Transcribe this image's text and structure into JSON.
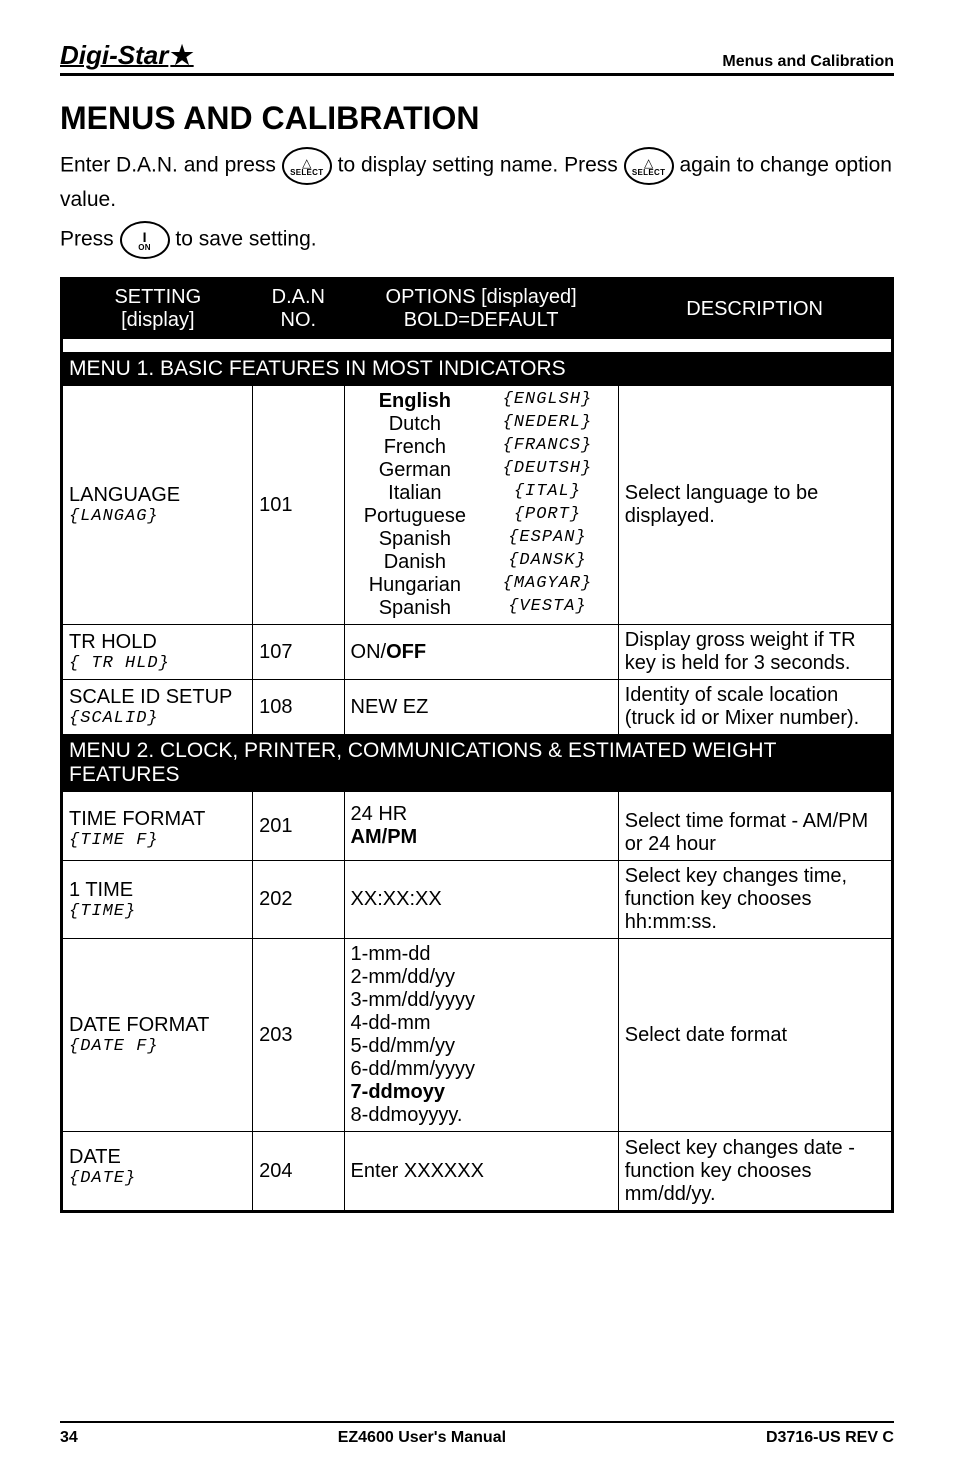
{
  "header": {
    "logo_text": "Digi-Star",
    "logo_star": "★",
    "right": "Menus and Calibration"
  },
  "title": "MENUS AND CALIBRATION",
  "intro": {
    "line1_a": "Enter D.A.N. and press ",
    "line1_b": " to display setting name. Press ",
    "line1_c": " again to change option value.",
    "line2_a": "Press ",
    "line2_b": " to save setting."
  },
  "icons": {
    "select_tri": "△",
    "select_label": "SELECT",
    "on_bar": "I",
    "on_label": "ON"
  },
  "table": {
    "headers": {
      "setting_l1": "SETTING",
      "setting_l2": "[display]",
      "dan_l1": "D.A.N",
      "dan_l2": "NO.",
      "options_l1": "OPTIONS [displayed]",
      "options_l2": "BOLD=DEFAULT",
      "desc": "DESCRIPTION"
    },
    "section1": "MENU 1. BASIC FEATURES IN MOST INDICATORS",
    "row_lang": {
      "setting": "LANGUAGE",
      "setting_disp": "{LANGAG}",
      "dan": "101",
      "langs": [
        {
          "name": "English",
          "code": "{ENGLSH}",
          "bold": true
        },
        {
          "name": "Dutch",
          "code": "{NEDERL}"
        },
        {
          "name": "French",
          "code": "{FRANCS}"
        },
        {
          "name": "German",
          "code": "{DEUTSH}"
        },
        {
          "name": "Italian",
          "code": "{ITAL}"
        },
        {
          "name": "Portuguese",
          "code": "{PORT}"
        },
        {
          "name": "Spanish",
          "code": "{ESPAN}"
        },
        {
          "name": "Danish",
          "code": "{DANSK}"
        },
        {
          "name": "Hungarian",
          "code": "{MAGYAR}"
        },
        {
          "name": "Spanish",
          "code": "{VESTA}"
        }
      ],
      "desc": "Select language to be displayed."
    },
    "row_trhold": {
      "setting": "TR HOLD",
      "setting_disp": "{ TR HLD}",
      "dan": "107",
      "options_pre": "ON/",
      "options_bold": "OFF",
      "desc": "Display gross weight if TR key is held for 3 seconds."
    },
    "row_scaleid": {
      "setting": "SCALE ID SETUP",
      "setting_disp": "{SCALID}",
      "dan": "108",
      "options": "NEW EZ",
      "desc": "Identity of scale location (truck id or Mixer number)."
    },
    "section2": "MENU 2. CLOCK, PRINTER, COMMUNICATIONS & ESTIMATED WEIGHT FEATURES",
    "row_timef": {
      "setting": "TIME FORMAT",
      "setting_disp": "{TIME F}",
      "dan": "201",
      "options_l1": "24 HR",
      "options_l2": "AM/PM",
      "desc": "Select time format - AM/PM or 24 hour"
    },
    "row_time": {
      "setting": "1 TIME",
      "setting_disp": "{TIME}",
      "dan": "202",
      "options": "XX:XX:XX",
      "desc": "Select key changes time, function key chooses hh:mm:ss."
    },
    "row_datef": {
      "setting": "DATE FORMAT",
      "setting_disp": "{DATE F}",
      "dan": "203",
      "options": [
        "1-mm-dd",
        "2-mm/dd/yy",
        "3-mm/dd/yyyy",
        "4-dd-mm",
        "5-dd/mm/yy",
        "6-dd/mm/yyyy",
        "7-ddmoyy",
        "8-ddmoyyyy."
      ],
      "options_bold_index": 6,
      "desc": "Select date format"
    },
    "row_date": {
      "setting": "DATE",
      "setting_disp": "{DATE}",
      "dan": "204",
      "options": "Enter XXXXXX",
      "desc": "Select key changes date - function key chooses mm/dd/yy."
    }
  },
  "footer": {
    "page": "34",
    "center": "EZ4600 User's Manual",
    "right": "D3716-US  REV C"
  }
}
